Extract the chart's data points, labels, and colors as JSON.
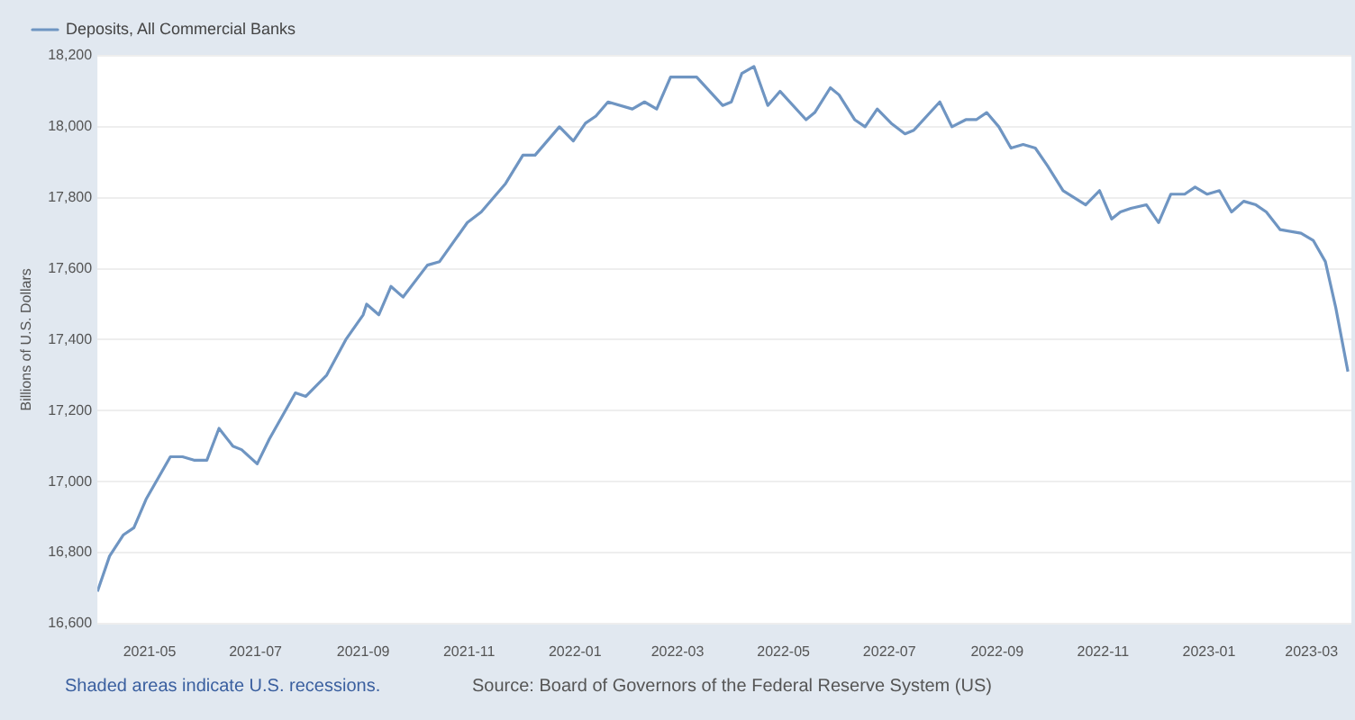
{
  "chart_data": {
    "type": "line",
    "ylabel": "Billions of U.S. Dollars",
    "annotations": [
      "Shaded areas indicate U.S. recessions.",
      "Source: Board of Governors of the Federal Reserve System (US)"
    ],
    "x": [
      "2021-04-01",
      "2021-04-08",
      "2021-04-16",
      "2021-04-22",
      "2021-04-29",
      "2021-05-13",
      "2021-05-20",
      "2021-05-27",
      "2021-06-03",
      "2021-06-10",
      "2021-06-18",
      "2021-06-23",
      "2021-07-02",
      "2021-07-09",
      "2021-07-24",
      "2021-07-30",
      "2021-08-11",
      "2021-08-22",
      "2021-09-01",
      "2021-09-03",
      "2021-09-10",
      "2021-09-17",
      "2021-09-24",
      "2021-10-08",
      "2021-10-15",
      "2021-10-31",
      "2021-11-08",
      "2021-11-22",
      "2021-12-02",
      "2021-12-09",
      "2021-12-23",
      "2021-12-31",
      "2022-01-07",
      "2022-01-13",
      "2022-01-20",
      "2022-02-03",
      "2022-02-10",
      "2022-02-17",
      "2022-02-25",
      "2022-03-12",
      "2022-03-27",
      "2022-04-01",
      "2022-04-07",
      "2022-04-14",
      "2022-04-22",
      "2022-04-29",
      "2022-05-14",
      "2022-05-19",
      "2022-05-28",
      "2022-06-02",
      "2022-06-11",
      "2022-06-17",
      "2022-06-24",
      "2022-07-02",
      "2022-07-10",
      "2022-07-15",
      "2022-07-30",
      "2022-08-06",
      "2022-08-14",
      "2022-08-20",
      "2022-08-26",
      "2022-09-02",
      "2022-09-09",
      "2022-09-16",
      "2022-09-23",
      "2022-09-30",
      "2022-10-09",
      "2022-10-22",
      "2022-10-30",
      "2022-11-06",
      "2022-11-11",
      "2022-11-17",
      "2022-11-26",
      "2022-12-03",
      "2022-12-10",
      "2022-12-18",
      "2022-12-24",
      "2022-12-31",
      "2023-01-07",
      "2023-01-14",
      "2023-01-21",
      "2023-01-28",
      "2023-02-03",
      "2023-02-11",
      "2023-02-23",
      "2023-03-02",
      "2023-03-09",
      "2023-03-15",
      "2023-03-22"
    ],
    "series": [
      {
        "name": "Deposits, All Commercial Banks",
        "color": "#6f95c2",
        "values": [
          16690,
          16790,
          16850,
          16870,
          16950,
          17070,
          17070,
          17060,
          17060,
          17150,
          17100,
          17090,
          17050,
          17120,
          17250,
          17240,
          17300,
          17400,
          17470,
          17500,
          17470,
          17550,
          17520,
          17610,
          17620,
          17730,
          17760,
          17840,
          17920,
          17920,
          18000,
          17960,
          18010,
          18030,
          18070,
          18050,
          18070,
          18050,
          18140,
          18140,
          18060,
          18070,
          18150,
          18170,
          18060,
          18100,
          18020,
          18040,
          18110,
          18090,
          18020,
          18000,
          18050,
          18010,
          17980,
          17990,
          18070,
          18000,
          18020,
          18020,
          18040,
          18000,
          17940,
          17950,
          17940,
          17890,
          17820,
          17780,
          17820,
          17740,
          17760,
          17770,
          17780,
          17730,
          17810,
          17810,
          17830,
          17810,
          17820,
          17760,
          17790,
          17780,
          17760,
          17710,
          17700,
          17680,
          17620,
          17490,
          17310
        ]
      }
    ],
    "xlim": [
      "2021-04-01",
      "2023-03-24"
    ],
    "xticks": [
      "2021-05",
      "2021-07",
      "2021-09",
      "2021-11",
      "2022-01",
      "2022-03",
      "2022-05",
      "2022-07",
      "2022-09",
      "2022-11",
      "2023-01",
      "2023-03"
    ],
    "ylim": [
      16600,
      18200
    ],
    "yticks": [
      {
        "value": 16600,
        "label": "16,600"
      },
      {
        "value": 16800,
        "label": "16,800"
      },
      {
        "value": 17000,
        "label": "17,000"
      },
      {
        "value": 17200,
        "label": "17,200"
      },
      {
        "value": 17400,
        "label": "17,400"
      },
      {
        "value": 17600,
        "label": "17,600"
      },
      {
        "value": 17800,
        "label": "17,800"
      },
      {
        "value": 18000,
        "label": "18,000"
      },
      {
        "value": 18200,
        "label": "18,200"
      }
    ],
    "grid": "y",
    "legend": "top left",
    "marker": "none",
    "line_style": "solid"
  }
}
